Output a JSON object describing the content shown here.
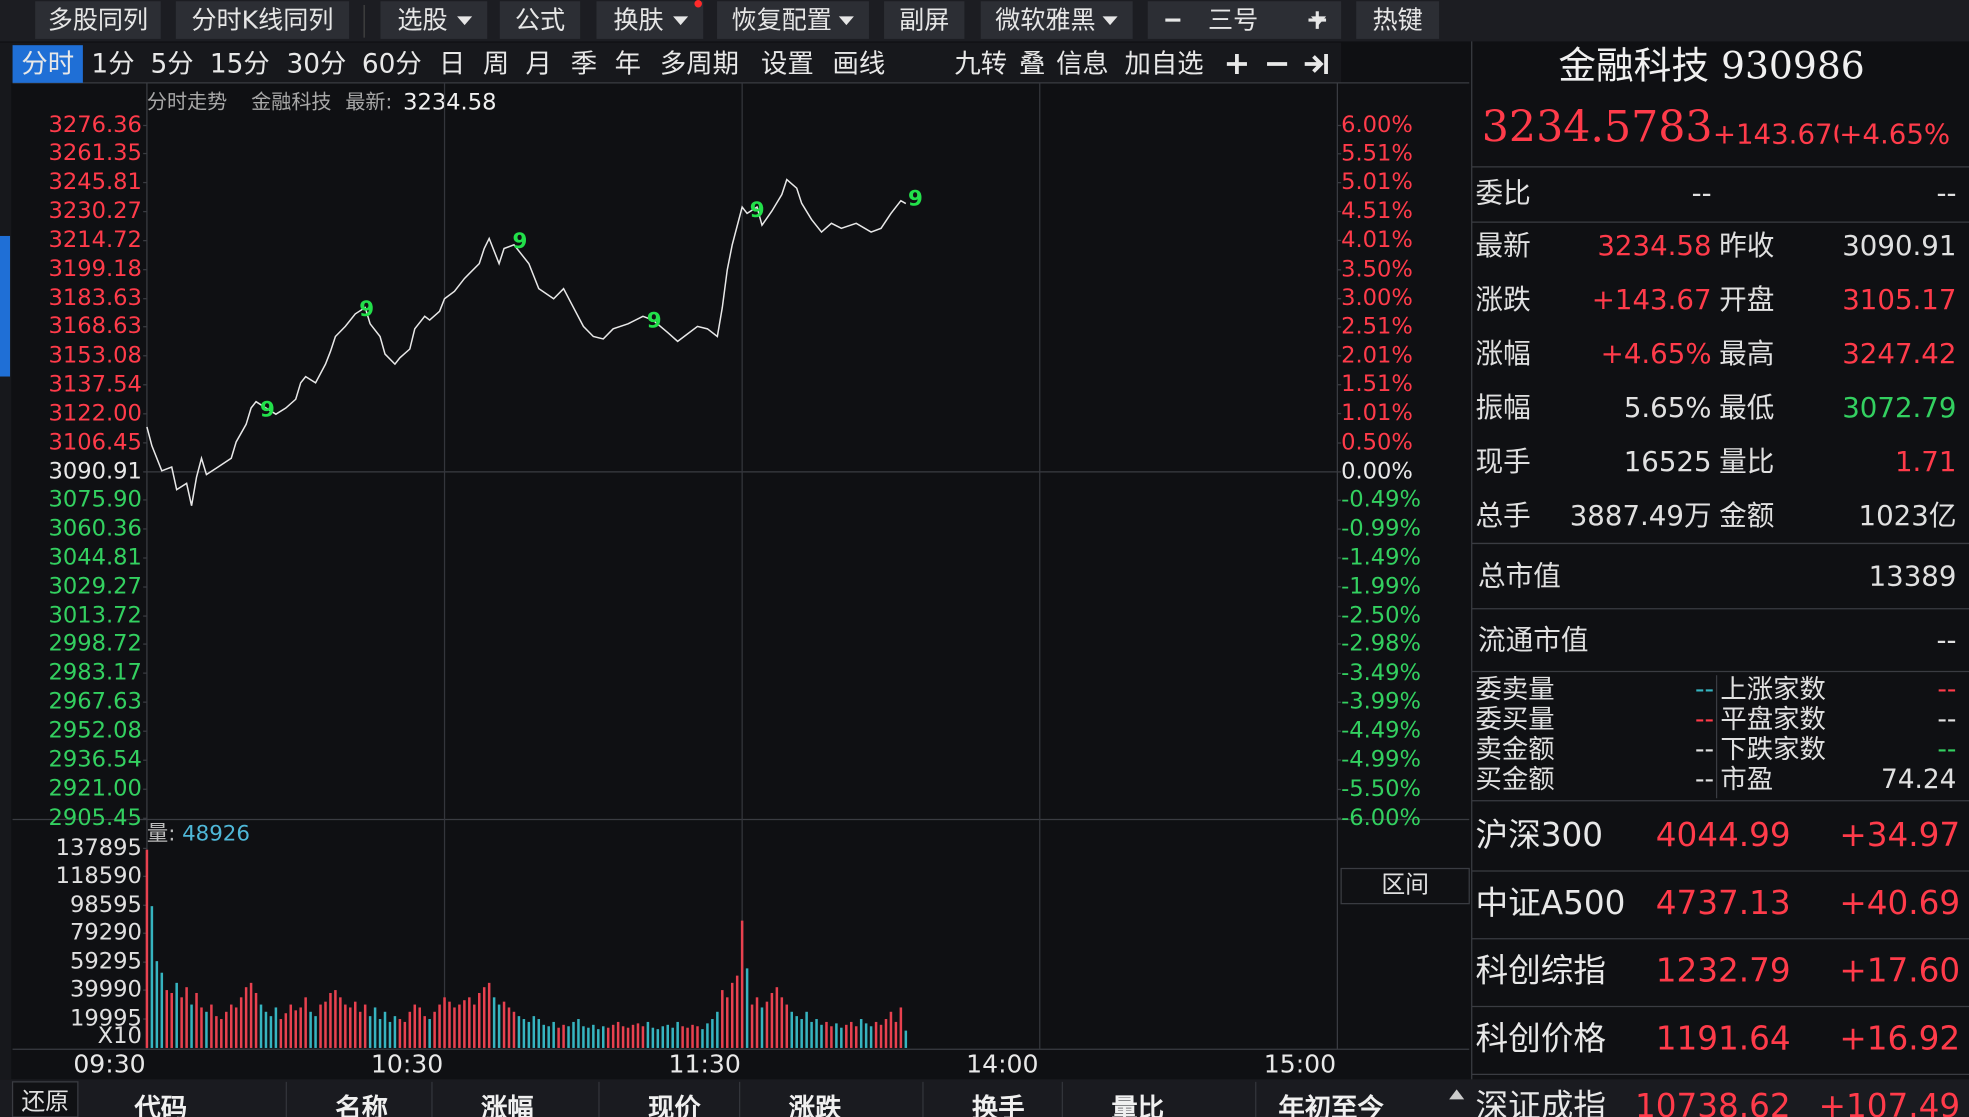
{
  "toolbar": {
    "buttons": [
      {
        "text": "多股同列",
        "dropdown": false
      },
      {
        "text": "分时K线同列",
        "dropdown": false
      },
      {
        "text": "选股",
        "dropdown": true
      },
      {
        "text": "公式",
        "dropdown": false
      },
      {
        "text": "换肤",
        "dropdown": true
      },
      {
        "text": "恢复配置",
        "dropdown": true
      },
      {
        "text": "副屏",
        "dropdown": false
      },
      {
        "text": "微软雅黑",
        "dropdown": true
      },
      {
        "text": "三号",
        "dropdown": true
      },
      {
        "text": "热键",
        "dropdown": false
      }
    ]
  },
  "period_tabs": [
    "分时",
    "1分",
    "5分",
    "15分",
    "30分",
    "60分",
    "日",
    "周",
    "月",
    "季",
    "年",
    "多周期",
    "设置",
    "画线"
  ],
  "tool_tabs": [
    "九转",
    "叠",
    "信息",
    "加自选"
  ],
  "chart": {
    "title": "分时走势",
    "name": "金融科技",
    "latest_label": "最新:",
    "latest": "3234.58",
    "signal_label": "9",
    "up_color": "#ff3b4a",
    "down_color": "#33d060",
    "flat_color": "#e8e8e8",
    "xlim": [
      0,
      240
    ],
    "xticks": [
      {
        "value": 0,
        "label": "09:30"
      },
      {
        "value": 60,
        "label": "10:30"
      },
      {
        "value": 120,
        "label": "11:30"
      },
      {
        "value": 180,
        "label": "14:00"
      },
      {
        "value": 240,
        "label": "15:00"
      }
    ],
    "ylim": [
      2905.45,
      3276.36
    ],
    "yticks": [
      3276.36,
      3261.35,
      3245.81,
      3230.27,
      3214.72,
      3199.18,
      3183.63,
      3168.63,
      3153.08,
      3137.54,
      {
        "value": 3122,
        "label": "3122.00"
      },
      3106.45,
      3090.91,
      {
        "value": 3075.9,
        "label": "3075.90"
      },
      3060.36,
      3044.81,
      3029.27,
      3013.72,
      2998.72,
      2983.17,
      2967.63,
      2952.08,
      2936.54,
      {
        "value": 2921,
        "label": "2921.00"
      },
      2905.45
    ],
    "y2lim": [
      -6,
      6
    ],
    "y2ticks": [
      {
        "value": 6,
        "label": "6.00%"
      },
      {
        "value": 5.51,
        "label": "5.51%"
      },
      {
        "value": 5.01,
        "label": "5.01%"
      },
      {
        "value": 4.51,
        "label": "4.51%"
      },
      {
        "value": 4.01,
        "label": "4.01%"
      },
      {
        "value": 3.5,
        "label": "3.50%"
      },
      {
        "value": 3,
        "label": "3.00%"
      },
      {
        "value": 2.51,
        "label": "2.51%"
      },
      {
        "value": 2.01,
        "label": "2.01%"
      },
      {
        "value": 1.51,
        "label": "1.51%"
      },
      {
        "value": 1.01,
        "label": "1.01%"
      },
      {
        "value": 0.5,
        "label": "0.50%"
      },
      {
        "value": 0,
        "label": "0.00%"
      },
      {
        "value": -0.49,
        "label": "-0.49%"
      },
      {
        "value": -0.99,
        "label": "-0.99%"
      },
      {
        "value": -1.49,
        "label": "-1.49%"
      },
      {
        "value": -1.99,
        "label": "-1.99%"
      },
      {
        "value": -2.5,
        "label": "-2.50%"
      },
      {
        "value": -2.98,
        "label": "-2.98%"
      },
      {
        "value": -3.49,
        "label": "-3.49%"
      },
      {
        "value": -3.99,
        "label": "-3.99%"
      },
      {
        "value": -4.49,
        "label": "-4.49%"
      },
      {
        "value": -4.99,
        "label": "-4.99%"
      },
      {
        "value": -5.5,
        "label": "-5.50%"
      },
      {
        "value": -6,
        "label": "-6.00%"
      }
    ],
    "price": {
      "color": "#e8e8e8",
      "x": [
        0,
        1,
        3,
        5,
        6,
        8,
        9,
        10,
        11,
        12,
        14,
        17,
        18,
        20,
        21,
        22,
        24,
        26,
        28,
        30,
        31,
        32,
        34,
        36,
        37,
        38,
        40,
        42,
        44,
        45,
        47,
        48,
        50,
        51,
        53,
        54,
        56,
        57,
        59,
        60,
        62,
        64,
        65,
        67,
        68,
        69,
        71,
        72,
        74,
        77,
        79,
        82,
        84,
        86,
        88,
        90,
        92,
        94,
        97,
        100,
        102,
        105,
        107,
        109,
        111,
        113,
        115,
        116,
        117,
        118,
        120,
        121,
        123,
        124,
        126,
        128,
        129,
        131,
        132,
        134,
        136,
        138,
        140,
        143,
        146,
        148,
        150,
        152,
        153
      ],
      "values": [
        3115.0,
        3104.9,
        3091.5,
        3093.5,
        3081.4,
        3084.8,
        3072.8,
        3088.1,
        3098.2,
        3089.5,
        3092.9,
        3098.2,
        3107.0,
        3116.4,
        3125.1,
        3128.5,
        3125.1,
        3121.8,
        3125.1,
        3129.8,
        3138.6,
        3141.9,
        3138.6,
        3148.6,
        3155.4,
        3163.4,
        3168.8,
        3175.5,
        3178.9,
        3170.2,
        3163.4,
        3154.0,
        3148.6,
        3152.0,
        3156.7,
        3167.5,
        3174.2,
        3172.2,
        3176.9,
        3183.6,
        3187.6,
        3194.4,
        3197.1,
        3202.4,
        3210.5,
        3215.9,
        3202.4,
        3210.5,
        3212.5,
        3202.4,
        3189.0,
        3183.6,
        3189.0,
        3178.9,
        3168.8,
        3163.4,
        3162.1,
        3167.5,
        3170.2,
        3174.2,
        3172.2,
        3165.5,
        3160.8,
        3164.8,
        3168.8,
        3167.5,
        3163.4,
        3178.9,
        3199.1,
        3212.5,
        3232.7,
        3229.3,
        3232.7,
        3223.0,
        3230.6,
        3239.4,
        3247.4,
        3242.8,
        3234.7,
        3226.0,
        3219.3,
        3224.0,
        3221.3,
        3224.0,
        3219.3,
        3221.3,
        3229.3,
        3236.1,
        3234.58
      ]
    },
    "volume": {
      "label": "量:",
      "latest": "48926",
      "unit_label": "X10",
      "up_color": "#e8414f",
      "down_color": "#36b4c0",
      "ylim": [
        0,
        137895
      ],
      "yticks": [
        137895,
        118590,
        98595,
        79290,
        59295,
        39990,
        19995
      ],
      "values": [
        137000,
        98000,
        60000,
        52000,
        40000,
        38000,
        45000,
        35000,
        42000,
        30000,
        38000,
        28000,
        25000,
        30000,
        22000,
        20000,
        25000,
        30000,
        28000,
        35000,
        42000,
        45000,
        38000,
        30000,
        25000,
        22000,
        28000,
        20000,
        24000,
        30000,
        26000,
        28000,
        35000,
        25000,
        22000,
        30000,
        32000,
        38000,
        40000,
        35000,
        30000,
        28000,
        32000,
        25000,
        30000,
        22000,
        28000,
        20000,
        25000,
        18000,
        22000,
        20000,
        18000,
        25000,
        30000,
        28000,
        22000,
        20000,
        25000,
        30000,
        35000,
        32000,
        28000,
        30000,
        33000,
        35000,
        30000,
        38000,
        42000,
        45000,
        35000,
        30000,
        32000,
        28000,
        25000,
        22000,
        20000,
        18000,
        22000,
        20000,
        16000,
        15000,
        18000,
        14000,
        16000,
        15000,
        18000,
        20000,
        15000,
        14000,
        16000,
        13000,
        15000,
        14000,
        16000,
        18000,
        15000,
        14000,
        16000,
        17000,
        15000,
        18000,
        14000,
        13000,
        15000,
        16000,
        14000,
        18000,
        15000,
        14000,
        16000,
        15000,
        13000,
        17000,
        20000,
        25000,
        40000,
        35000,
        45000,
        50000,
        88000,
        55000,
        30000,
        35000,
        28000,
        32000,
        38000,
        42000,
        35000,
        30000,
        25000,
        22000,
        20000,
        25000,
        18000,
        20000,
        16000,
        18000,
        15000,
        17000,
        14000,
        16000,
        18000,
        15000,
        20000,
        17000,
        15000,
        18000,
        16000,
        20000,
        25000,
        18000,
        28000,
        12000
      ]
    }
  },
  "range_button": "区间",
  "quote": {
    "title": "金融科技 930986",
    "price": "3234.5783",
    "change": "+143.6709",
    "change_pct": "+4.65%",
    "price_color": "#ff3b4a",
    "ratio_row": {
      "label": "委比",
      "values": [
        "--",
        "--"
      ]
    },
    "rows": [
      {
        "cells": [
          "最新",
          "3234.58",
          "昨收",
          "3090.91"
        ],
        "colors": [
          "#e0e0e0",
          "#ff3b4a",
          "#e0e0e0",
          "#e0e0e0"
        ]
      },
      {
        "cells": [
          "涨跌",
          "+143.67",
          "开盘",
          "3105.17"
        ],
        "colors": [
          "#e0e0e0",
          "#ff3b4a",
          "#e0e0e0",
          "#ff3b4a"
        ]
      },
      {
        "cells": [
          "涨幅",
          "+4.65%",
          "最高",
          "3247.42"
        ],
        "colors": [
          "#e0e0e0",
          "#ff3b4a",
          "#e0e0e0",
          "#ff3b4a"
        ]
      },
      {
        "cells": [
          "振幅",
          "5.65%",
          "最低",
          "3072.79"
        ],
        "colors": [
          "#e0e0e0",
          "#e0e0e0",
          "#e0e0e0",
          "#33d060"
        ]
      },
      {
        "cells": [
          "现手",
          "16525",
          "量比",
          "1.71"
        ],
        "colors": [
          "#e0e0e0",
          "#e0e0e0",
          "#e0e0e0",
          "#ff3b4a"
        ]
      },
      {
        "cells": [
          "总手",
          "3887.49万",
          "金额",
          "1023亿"
        ],
        "colors": [
          "#e0e0e0",
          "#e0e0e0",
          "#e0e0e0",
          "#e0e0e0"
        ]
      }
    ],
    "cap_rows": [
      {
        "label": "总市值",
        "value": "13389"
      },
      {
        "label": "流通市值",
        "value": "--"
      }
    ],
    "book_rows": [
      {
        "cells": [
          "委卖量",
          "--",
          "上涨家数",
          "--"
        ],
        "colors": [
          "#e0e0e0",
          "#36b4c0",
          "#e0e0e0",
          "#ff3b4a"
        ]
      },
      {
        "cells": [
          "委买量",
          "--",
          "平盘家数",
          "--"
        ],
        "colors": [
          "#e0e0e0",
          "#ff3b4a",
          "#e0e0e0",
          "#e0e0e0"
        ]
      },
      {
        "cells": [
          "卖金额",
          "--",
          "下跌家数",
          "--"
        ],
        "colors": [
          "#e0e0e0",
          "#e0e0e0",
          "#e0e0e0",
          "#33d060"
        ]
      },
      {
        "cells": [
          "买金额",
          "--",
          "市盈",
          "74.24"
        ],
        "colors": [
          "#e0e0e0",
          "#e0e0e0",
          "#e0e0e0",
          "#e0e0e0"
        ]
      }
    ]
  },
  "indices": {
    "color": "#ff3b4a",
    "rows": [
      {
        "name": "沪深300",
        "value": "4044.99",
        "change": "+34.97"
      },
      {
        "name": "中证A500",
        "value": "4737.13",
        "change": "+40.69"
      },
      {
        "name": "科创综指",
        "value": "1232.79",
        "change": "+17.60"
      },
      {
        "name": "科创价格",
        "value": "1191.64",
        "change": "+16.92"
      },
      {
        "name": "深证成指",
        "value": "10738.62",
        "change": "+107.49"
      }
    ]
  },
  "bottom_header": {
    "restore": "还原",
    "columns": [
      "代码",
      "名称",
      "涨幅",
      "现价",
      "涨跌",
      "换手",
      "量比",
      "年初至今"
    ]
  }
}
